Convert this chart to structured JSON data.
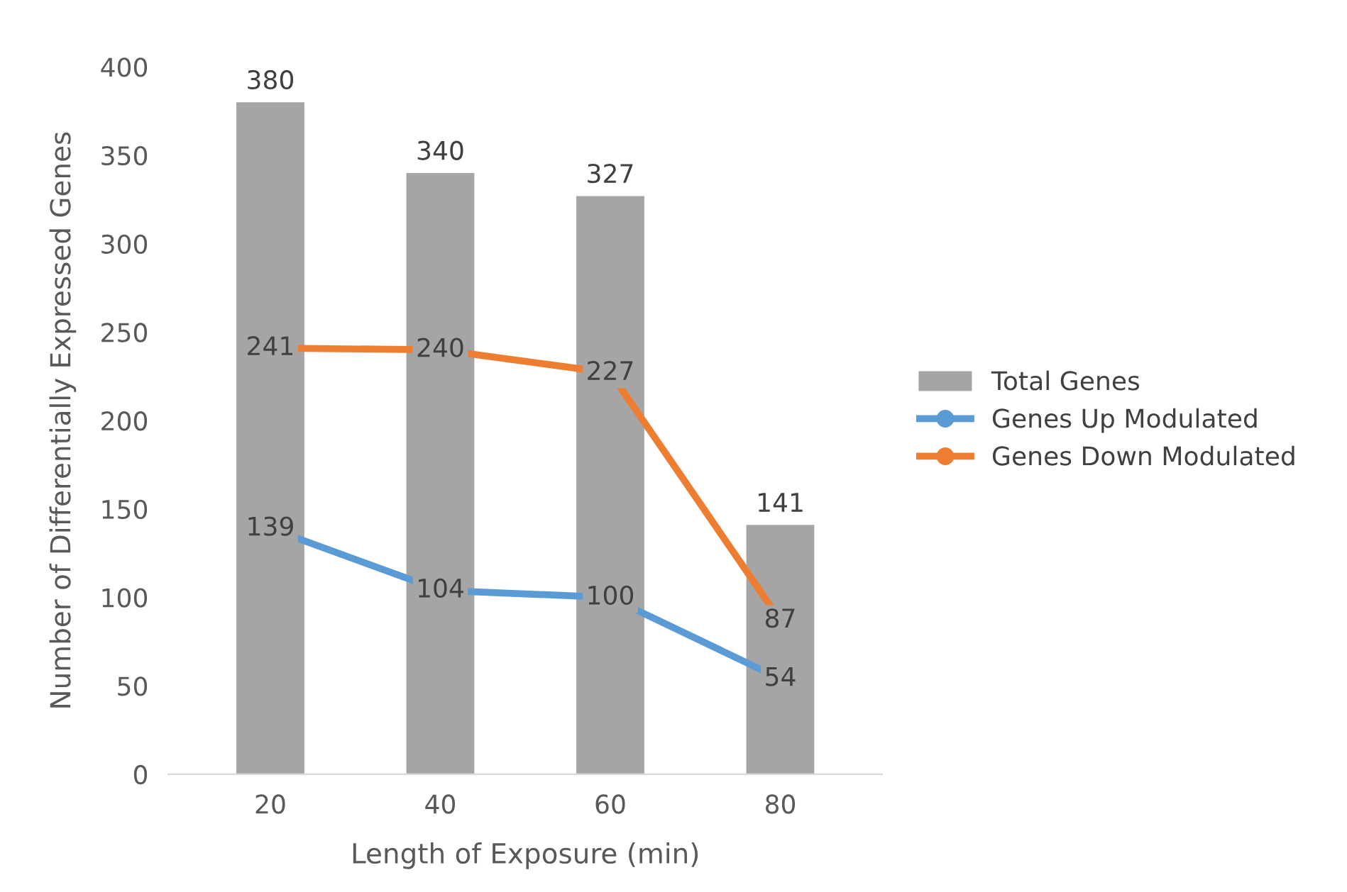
{
  "chart_data": {
    "type": "bar",
    "xlabel": "Length of Exposure (min)",
    "ylabel": "Number of Differentially Expressed Genes",
    "categories": [
      "20",
      "40",
      "60",
      "80"
    ],
    "series": [
      {
        "name": "Total Genes",
        "color": "#a5a5a5",
        "values": [
          380,
          340,
          327,
          141
        ]
      },
      {
        "name": "Genes Up Modulated",
        "type": "line",
        "color": "#5b9bd5",
        "values": [
          139,
          104,
          100,
          54
        ]
      },
      {
        "name": "Genes Down Modulated",
        "type": "line",
        "color": "#ed7d31",
        "values": [
          241,
          240,
          227,
          87
        ]
      }
    ],
    "ylim": [
      0,
      400
    ],
    "yticks": [
      0,
      50,
      100,
      150,
      200,
      250,
      300,
      350,
      400
    ],
    "data_labels": true,
    "grid": false,
    "legend": "right",
    "marker": "circle",
    "line_style": "solid"
  }
}
